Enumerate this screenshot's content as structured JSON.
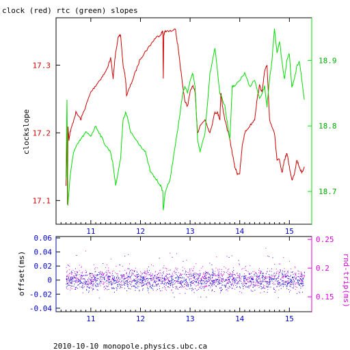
{
  "colors": {
    "clock": "#cc0000",
    "rtc": "#00dd00",
    "offset": "#0000cc",
    "rndtrip": "#dd00dd",
    "axis": "#000000"
  },
  "footer": "2010-10-10  monopole.physics.ubc.ca",
  "chart_data": [
    {
      "type": "line",
      "title": "clock (red) rtc (green) slopes",
      "ylabel": "clockslope",
      "x_ticks": [
        "11",
        "12",
        "13",
        "14",
        "15"
      ],
      "xlim": [
        10.3,
        15.45
      ],
      "ylim": [
        17.065,
        17.37
      ],
      "y_ticks": [
        "17.1",
        "17.2",
        "17.3"
      ],
      "y2lim": [
        18.65,
        18.965
      ],
      "y2_ticks": [
        "18.7",
        "18.8",
        "18.9"
      ],
      "series": [
        {
          "name": "clock",
          "axis": "left",
          "x": [
            10.5,
            10.52,
            10.53,
            10.54,
            10.56,
            10.58,
            10.62,
            10.7,
            10.8,
            10.9,
            11.0,
            11.1,
            11.2,
            11.3,
            11.4,
            11.45,
            11.5,
            11.55,
            11.6,
            11.65,
            11.7,
            11.72,
            11.8,
            11.9,
            12.0,
            12.1,
            12.2,
            12.3,
            12.4,
            12.45,
            12.46,
            12.47,
            12.5,
            12.6,
            12.7,
            12.75,
            12.8,
            12.85,
            12.9,
            12.95,
            13.0,
            13.05,
            13.1,
            13.15,
            13.2,
            13.3,
            13.4,
            13.5,
            13.55,
            13.6,
            13.62,
            13.65,
            13.7,
            13.8,
            13.85,
            13.9,
            13.95,
            14.0,
            14.05,
            14.1,
            14.2,
            14.3,
            14.35,
            14.4,
            14.45,
            14.5,
            14.55,
            14.6,
            14.7,
            14.75,
            14.8,
            14.85,
            14.9,
            14.95,
            15.0,
            15.05,
            15.1,
            15.15,
            15.2,
            15.25,
            15.3
          ],
          "y": [
            17.12,
            17.2,
            17.095,
            17.21,
            17.19,
            17.2,
            17.21,
            17.23,
            17.22,
            17.24,
            17.26,
            17.27,
            17.28,
            17.29,
            17.31,
            17.28,
            17.32,
            17.34,
            17.345,
            17.3,
            17.28,
            17.255,
            17.27,
            17.29,
            17.31,
            17.32,
            17.33,
            17.34,
            17.345,
            17.35,
            17.28,
            17.345,
            17.35,
            17.35,
            17.355,
            17.33,
            17.3,
            17.27,
            17.245,
            17.24,
            17.26,
            17.27,
            17.26,
            17.2,
            17.21,
            17.22,
            17.2,
            17.23,
            17.23,
            17.22,
            17.26,
            17.24,
            17.22,
            17.19,
            17.17,
            17.15,
            17.14,
            17.14,
            17.18,
            17.2,
            17.21,
            17.22,
            17.25,
            17.27,
            17.26,
            17.29,
            17.3,
            17.22,
            17.2,
            17.16,
            17.16,
            17.14,
            17.16,
            17.17,
            17.15,
            17.13,
            17.14,
            17.16,
            17.15,
            17.14,
            17.15
          ]
        },
        {
          "name": "rtc",
          "axis": "right",
          "x": [
            10.5,
            10.52,
            10.53,
            10.54,
            10.58,
            10.65,
            10.72,
            10.8,
            10.9,
            11.0,
            11.1,
            11.2,
            11.3,
            11.4,
            11.45,
            11.5,
            11.6,
            11.65,
            11.7,
            11.75,
            11.8,
            11.9,
            12.0,
            12.1,
            12.2,
            12.3,
            12.4,
            12.45,
            12.46,
            12.5,
            12.6,
            12.7,
            12.8,
            12.85,
            12.9,
            12.95,
            13.0,
            13.05,
            13.1,
            13.15,
            13.2,
            13.3,
            13.4,
            13.5,
            13.6,
            13.7,
            13.8,
            13.85,
            13.9,
            14.0,
            14.1,
            14.2,
            14.3,
            14.4,
            14.5,
            14.55,
            14.6,
            14.65,
            14.7,
            14.75,
            14.8,
            14.85,
            14.9,
            14.95,
            15.0,
            15.05,
            15.1,
            15.15,
            15.2,
            15.25,
            15.3
          ],
          "y": [
            18.72,
            18.84,
            18.75,
            18.68,
            18.72,
            18.76,
            18.77,
            18.78,
            18.79,
            18.785,
            18.8,
            18.785,
            18.77,
            18.76,
            18.74,
            18.71,
            18.75,
            18.81,
            18.82,
            18.81,
            18.79,
            18.78,
            18.77,
            18.76,
            18.73,
            18.72,
            18.71,
            18.7,
            18.67,
            18.7,
            18.72,
            18.77,
            18.82,
            18.85,
            18.86,
            18.85,
            18.87,
            18.88,
            18.86,
            18.78,
            18.76,
            18.79,
            18.88,
            18.92,
            18.85,
            18.83,
            18.78,
            18.86,
            18.86,
            18.87,
            18.88,
            18.86,
            18.87,
            18.84,
            18.86,
            18.83,
            18.87,
            18.9,
            18.95,
            18.91,
            18.93,
            18.9,
            18.87,
            18.9,
            18.91,
            18.86,
            18.87,
            18.89,
            18.9,
            18.87,
            18.84
          ]
        }
      ]
    },
    {
      "type": "scatter",
      "ylabel": "offset(ms)",
      "y2label": "rnd-trip(ms)",
      "x_ticks": [
        "11",
        "12",
        "13",
        "14",
        "15"
      ],
      "xlim": [
        10.3,
        15.45
      ],
      "ylim": [
        -0.045,
        0.062
      ],
      "y_ticks": [
        "0.06",
        "0.04",
        "0.02",
        "0",
        "-0.02",
        "-0.04"
      ],
      "y2lim": [
        0.124,
        0.255
      ],
      "y2_ticks": [
        "0.25",
        "0.2",
        "0.15"
      ],
      "series": [
        {
          "name": "offset",
          "axis": "left",
          "center": 0.0,
          "spread": 0.012,
          "count": 1300
        },
        {
          "name": "rnd-trip",
          "axis": "right",
          "center": 0.182,
          "spread": 0.018,
          "count": 1000
        }
      ]
    }
  ]
}
